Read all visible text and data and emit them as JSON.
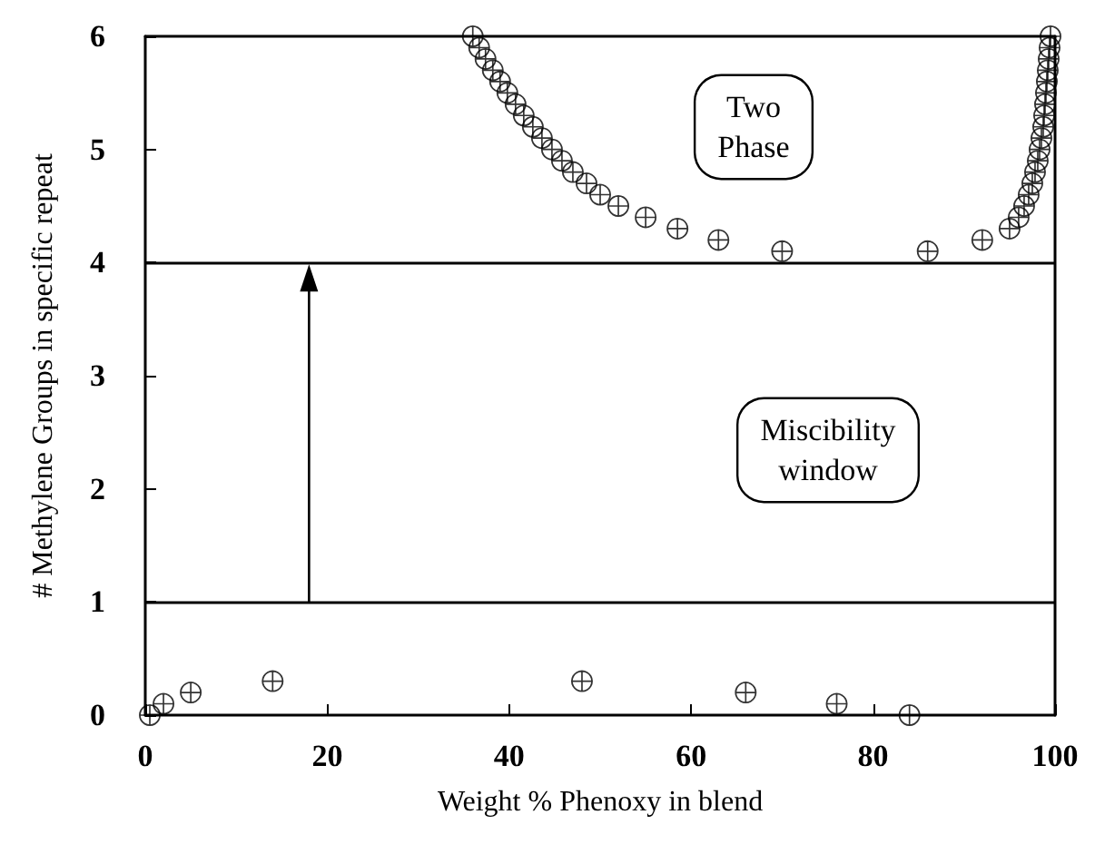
{
  "chart_data": {
    "type": "scatter",
    "xlabel": "Weight % Phenoxy in blend",
    "ylabel": "# Methylene Groups in specific repeat",
    "x": [
      0.5,
      2,
      5,
      14,
      48,
      66,
      76,
      84,
      36,
      36.7,
      37.4,
      38.2,
      39,
      39.8,
      40.7,
      41.6,
      42.6,
      43.6,
      44.7,
      45.8,
      47,
      48.5,
      50,
      52,
      55,
      58.5,
      63,
      70,
      86,
      92,
      95,
      96,
      96.6,
      97.1,
      97.5,
      97.8,
      98.1,
      98.3,
      98.5,
      98.7,
      98.8,
      98.9,
      99,
      99.1,
      99.2,
      99.3,
      99.4,
      99.5
    ],
    "values": [
      0,
      0.1,
      0.2,
      0.3,
      0.3,
      0.2,
      0.1,
      0,
      6,
      5.9,
      5.8,
      5.7,
      5.6,
      5.5,
      5.4,
      5.3,
      5.2,
      5.1,
      5.0,
      4.9,
      4.8,
      4.7,
      4.6,
      4.5,
      4.4,
      4.3,
      4.2,
      4.1,
      4.1,
      4.2,
      4.3,
      4.4,
      4.5,
      4.6,
      4.7,
      4.8,
      4.9,
      5.0,
      5.1,
      5.2,
      5.3,
      5.4,
      5.5,
      5.6,
      5.7,
      5.8,
      5.9,
      6
    ],
    "color": "#000000",
    "marker": "circle",
    "xlim": [
      0,
      100
    ],
    "xticks": [
      0,
      20,
      40,
      60,
      80,
      100
    ],
    "ylim": [
      0,
      6
    ],
    "yticks": [
      0,
      1,
      2,
      3,
      4,
      5,
      6
    ],
    "ref_lines": [
      {
        "axis": "y",
        "value": 1,
        "color": "#000000"
      },
      {
        "axis": "y",
        "value": 4,
        "color": "#000000"
      }
    ],
    "annotations": [
      "Two\nPhase",
      "Miscibility\nwindow"
    ],
    "grid": false
  }
}
